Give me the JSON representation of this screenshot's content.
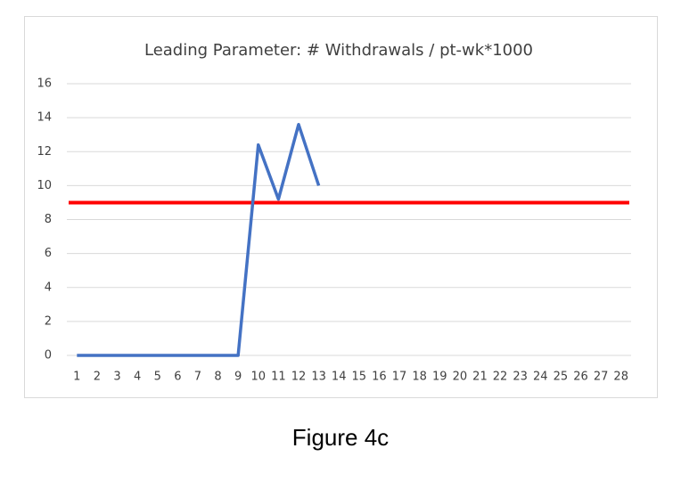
{
  "chart_data": {
    "type": "line",
    "title": "Leading Parameter: # Withdrawals / pt-wk*1000",
    "categories": [
      "1",
      "2",
      "3",
      "4",
      "5",
      "6",
      "7",
      "8",
      "9",
      "10",
      "11",
      "12",
      "13",
      "14",
      "15",
      "16",
      "17",
      "18",
      "19",
      "20",
      "21",
      "22",
      "23",
      "24",
      "25",
      "26",
      "27",
      "28"
    ],
    "series": [
      {
        "color": "#4472c4",
        "values": [
          0,
          0,
          0,
          0,
          0,
          0,
          0,
          0,
          0,
          12.4,
          9.2,
          13.6,
          10,
          null,
          null,
          null,
          null,
          null,
          null,
          null,
          null,
          null,
          null,
          null,
          null,
          null,
          null,
          null
        ]
      }
    ],
    "reference_line": {
      "value": 9,
      "color": "#ff0000"
    },
    "ylim": [
      0,
      16
    ],
    "yticks": [
      0,
      2,
      4,
      6,
      8,
      10,
      12,
      14,
      16
    ],
    "grid": true
  },
  "caption": "Figure 4c"
}
